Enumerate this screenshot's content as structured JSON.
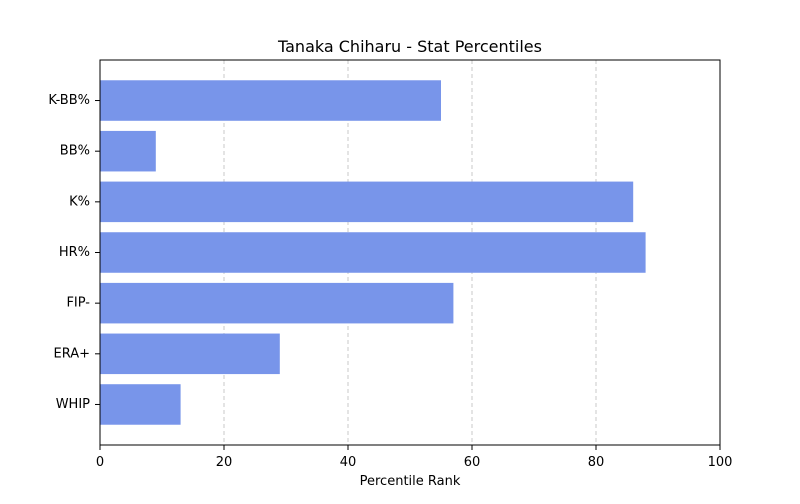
{
  "chart_data": {
    "type": "bar",
    "orientation": "horizontal",
    "title": "Tanaka Chiharu - Stat Percentiles",
    "xlabel": "Percentile Rank",
    "ylabel": "",
    "categories": [
      "WHIP",
      "ERA+",
      "FIP-",
      "HR%",
      "K%",
      "BB%",
      "K-BB%"
    ],
    "values": [
      13,
      29,
      57,
      88,
      86,
      9,
      55
    ],
    "xlim": [
      0,
      100
    ],
    "xticks": [
      0,
      20,
      40,
      60,
      80,
      100
    ],
    "grid": "x-axis dashed",
    "bar_color": "#7895ea"
  }
}
